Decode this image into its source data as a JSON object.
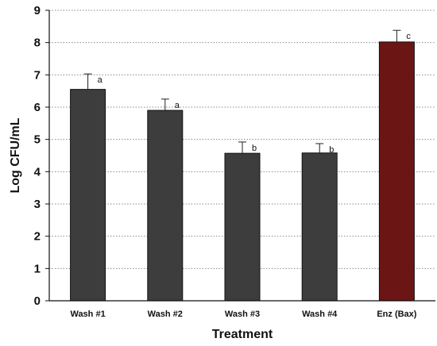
{
  "chart_data": {
    "type": "bar",
    "categories": [
      "Wash #1",
      "Wash #2",
      "Wash #3",
      "Wash #4",
      "Enz (Bax)"
    ],
    "values": [
      6.55,
      5.9,
      4.57,
      4.58,
      8.02
    ],
    "error_bars": [
      0.48,
      0.35,
      0.35,
      0.29,
      0.36
    ],
    "significance_labels": [
      "a",
      "a",
      "b",
      "b",
      "c"
    ],
    "bar_colors": [
      "#3d3d3d",
      "#3d3d3d",
      "#3d3d3d",
      "#3d3d3d",
      "#6b1515"
    ],
    "title": "",
    "xlabel": "Treatment",
    "ylabel": "Log CFU/mL",
    "ylim": [
      0,
      9
    ],
    "yticks": [
      0,
      1,
      2,
      3,
      4,
      5,
      6,
      7,
      8,
      9
    ],
    "grid": "horizontal dotted",
    "legend": "none"
  }
}
